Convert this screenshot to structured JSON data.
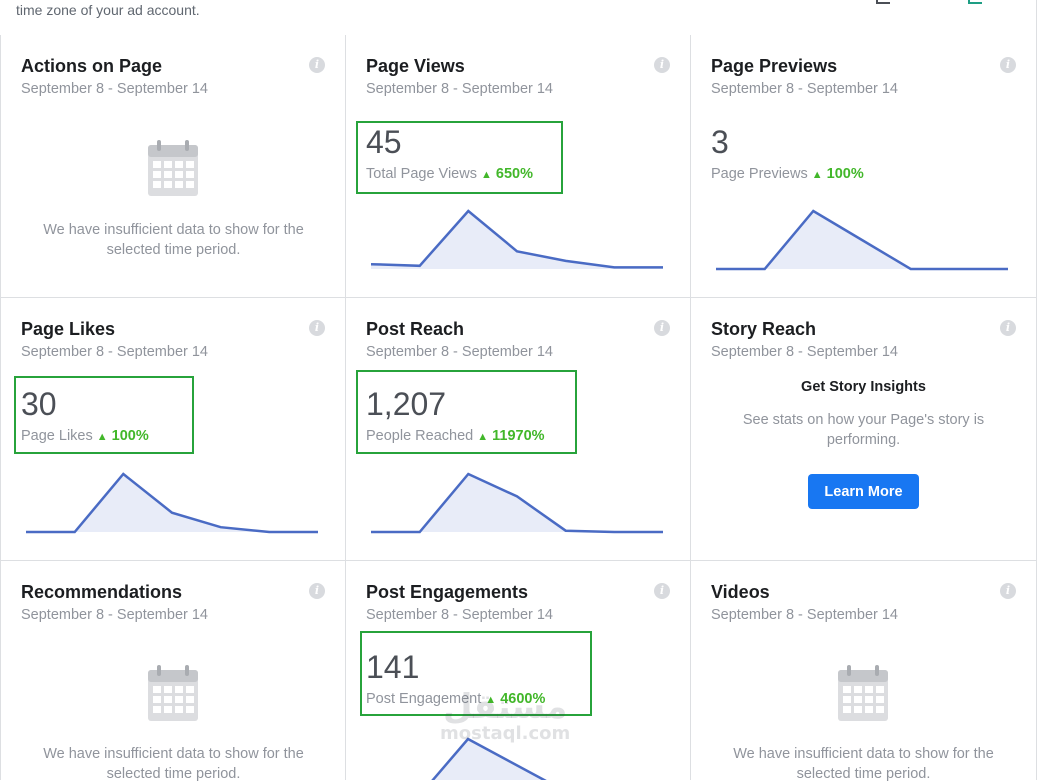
{
  "top_note": "time zone of your ad account.",
  "colors": {
    "accent": "#1877f2",
    "positive": "#42b72a",
    "highlight_box": "#27a33b",
    "spark_line": "#4a6bc4",
    "spark_fill": "#e8ecf8"
  },
  "cards": [
    {
      "title": "Actions on Page",
      "date": "September 8 - September 14",
      "info_icon": "info-icon",
      "empty_icon": "calendar-icon",
      "empty_text": "We have insufficient data to show for the selected time period."
    },
    {
      "title": "Page Views",
      "date": "September 8 - September 14",
      "info_icon": "info-icon",
      "value": "45",
      "label": "Total Page Views",
      "change": "650%",
      "sparkline": [
        3,
        2,
        36,
        11,
        5,
        1,
        1
      ]
    },
    {
      "title": "Page Previews",
      "date": "September 8 - September 14",
      "info_icon": "info-icon",
      "value": "3",
      "label": "Page Previews",
      "change": "100%",
      "sparkline": [
        0,
        0,
        2,
        1,
        0,
        0,
        0
      ]
    },
    {
      "title": "Page Likes",
      "date": "September 8 - September 14",
      "info_icon": "info-icon",
      "value": "30",
      "label": "Page Likes",
      "change": "100%",
      "sparkline": [
        0,
        0,
        12,
        4,
        1,
        0,
        0
      ]
    },
    {
      "title": "Post Reach",
      "date": "September 8 - September 14",
      "info_icon": "info-icon",
      "value": "1,207",
      "label": "People Reached",
      "change": "11970%",
      "sparkline": [
        0,
        0,
        44,
        27,
        1,
        0,
        0
      ]
    },
    {
      "title": "Story Reach",
      "date": "September 8 - September 14",
      "info_icon": "info-icon",
      "story_heading": "Get Story Insights",
      "story_text": "See stats on how your Page's story is performing.",
      "button_label": "Learn More"
    },
    {
      "title": "Recommendations",
      "date": "September 8 - September 14",
      "info_icon": "info-icon",
      "empty_icon": "calendar-icon",
      "empty_text": "We have insufficient data to show for the selected time period."
    },
    {
      "title": "Post Engagements",
      "date": "September 8 - September 14",
      "info_icon": "info-icon",
      "value": "141",
      "label": "Post Engagement",
      "change": "4600%"
    },
    {
      "title": "Videos",
      "date": "September 8 - September 14",
      "info_icon": "info-icon",
      "empty_icon": "calendar-icon",
      "empty_text": "We have insufficient data to show for the selected time period."
    }
  ],
  "watermark": {
    "arabic": "مستقل",
    "latin": "mostaql.com"
  }
}
